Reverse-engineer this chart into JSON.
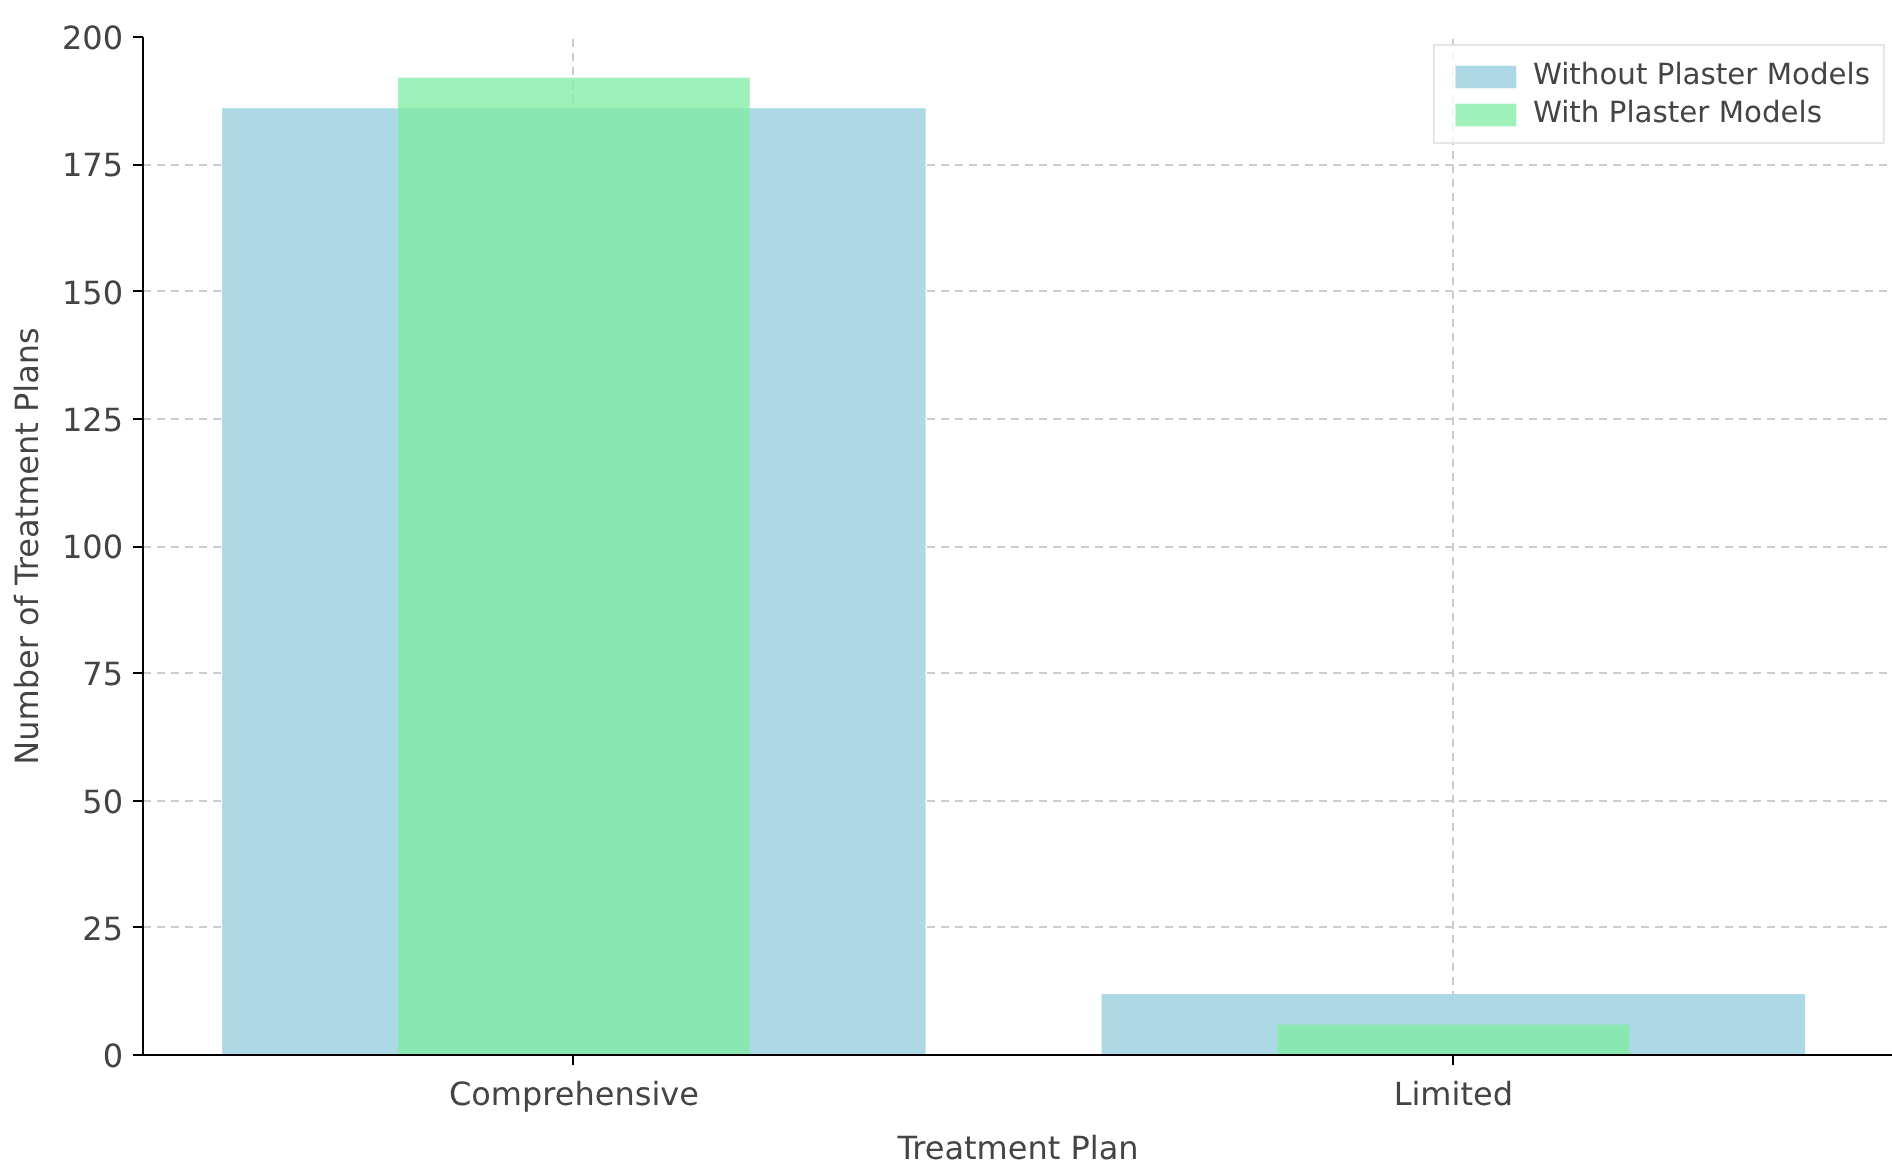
{
  "chart_data": {
    "type": "bar",
    "xlabel": "Treatment Plan",
    "ylabel": "Number of Treatment Plans",
    "categories": [
      "Comprehensive",
      "Limited"
    ],
    "series": [
      {
        "name": "Without Plaster Models",
        "color": "#add8e6",
        "values": [
          186,
          12
        ]
      },
      {
        "name": "With Plaster Models",
        "color": "#7eeca0",
        "values": [
          192,
          6
        ]
      }
    ],
    "ylim": [
      0,
      200
    ],
    "yticks": [
      0,
      25,
      50,
      75,
      100,
      125,
      150,
      175,
      200
    ],
    "grid": true,
    "legend": "top right"
  }
}
